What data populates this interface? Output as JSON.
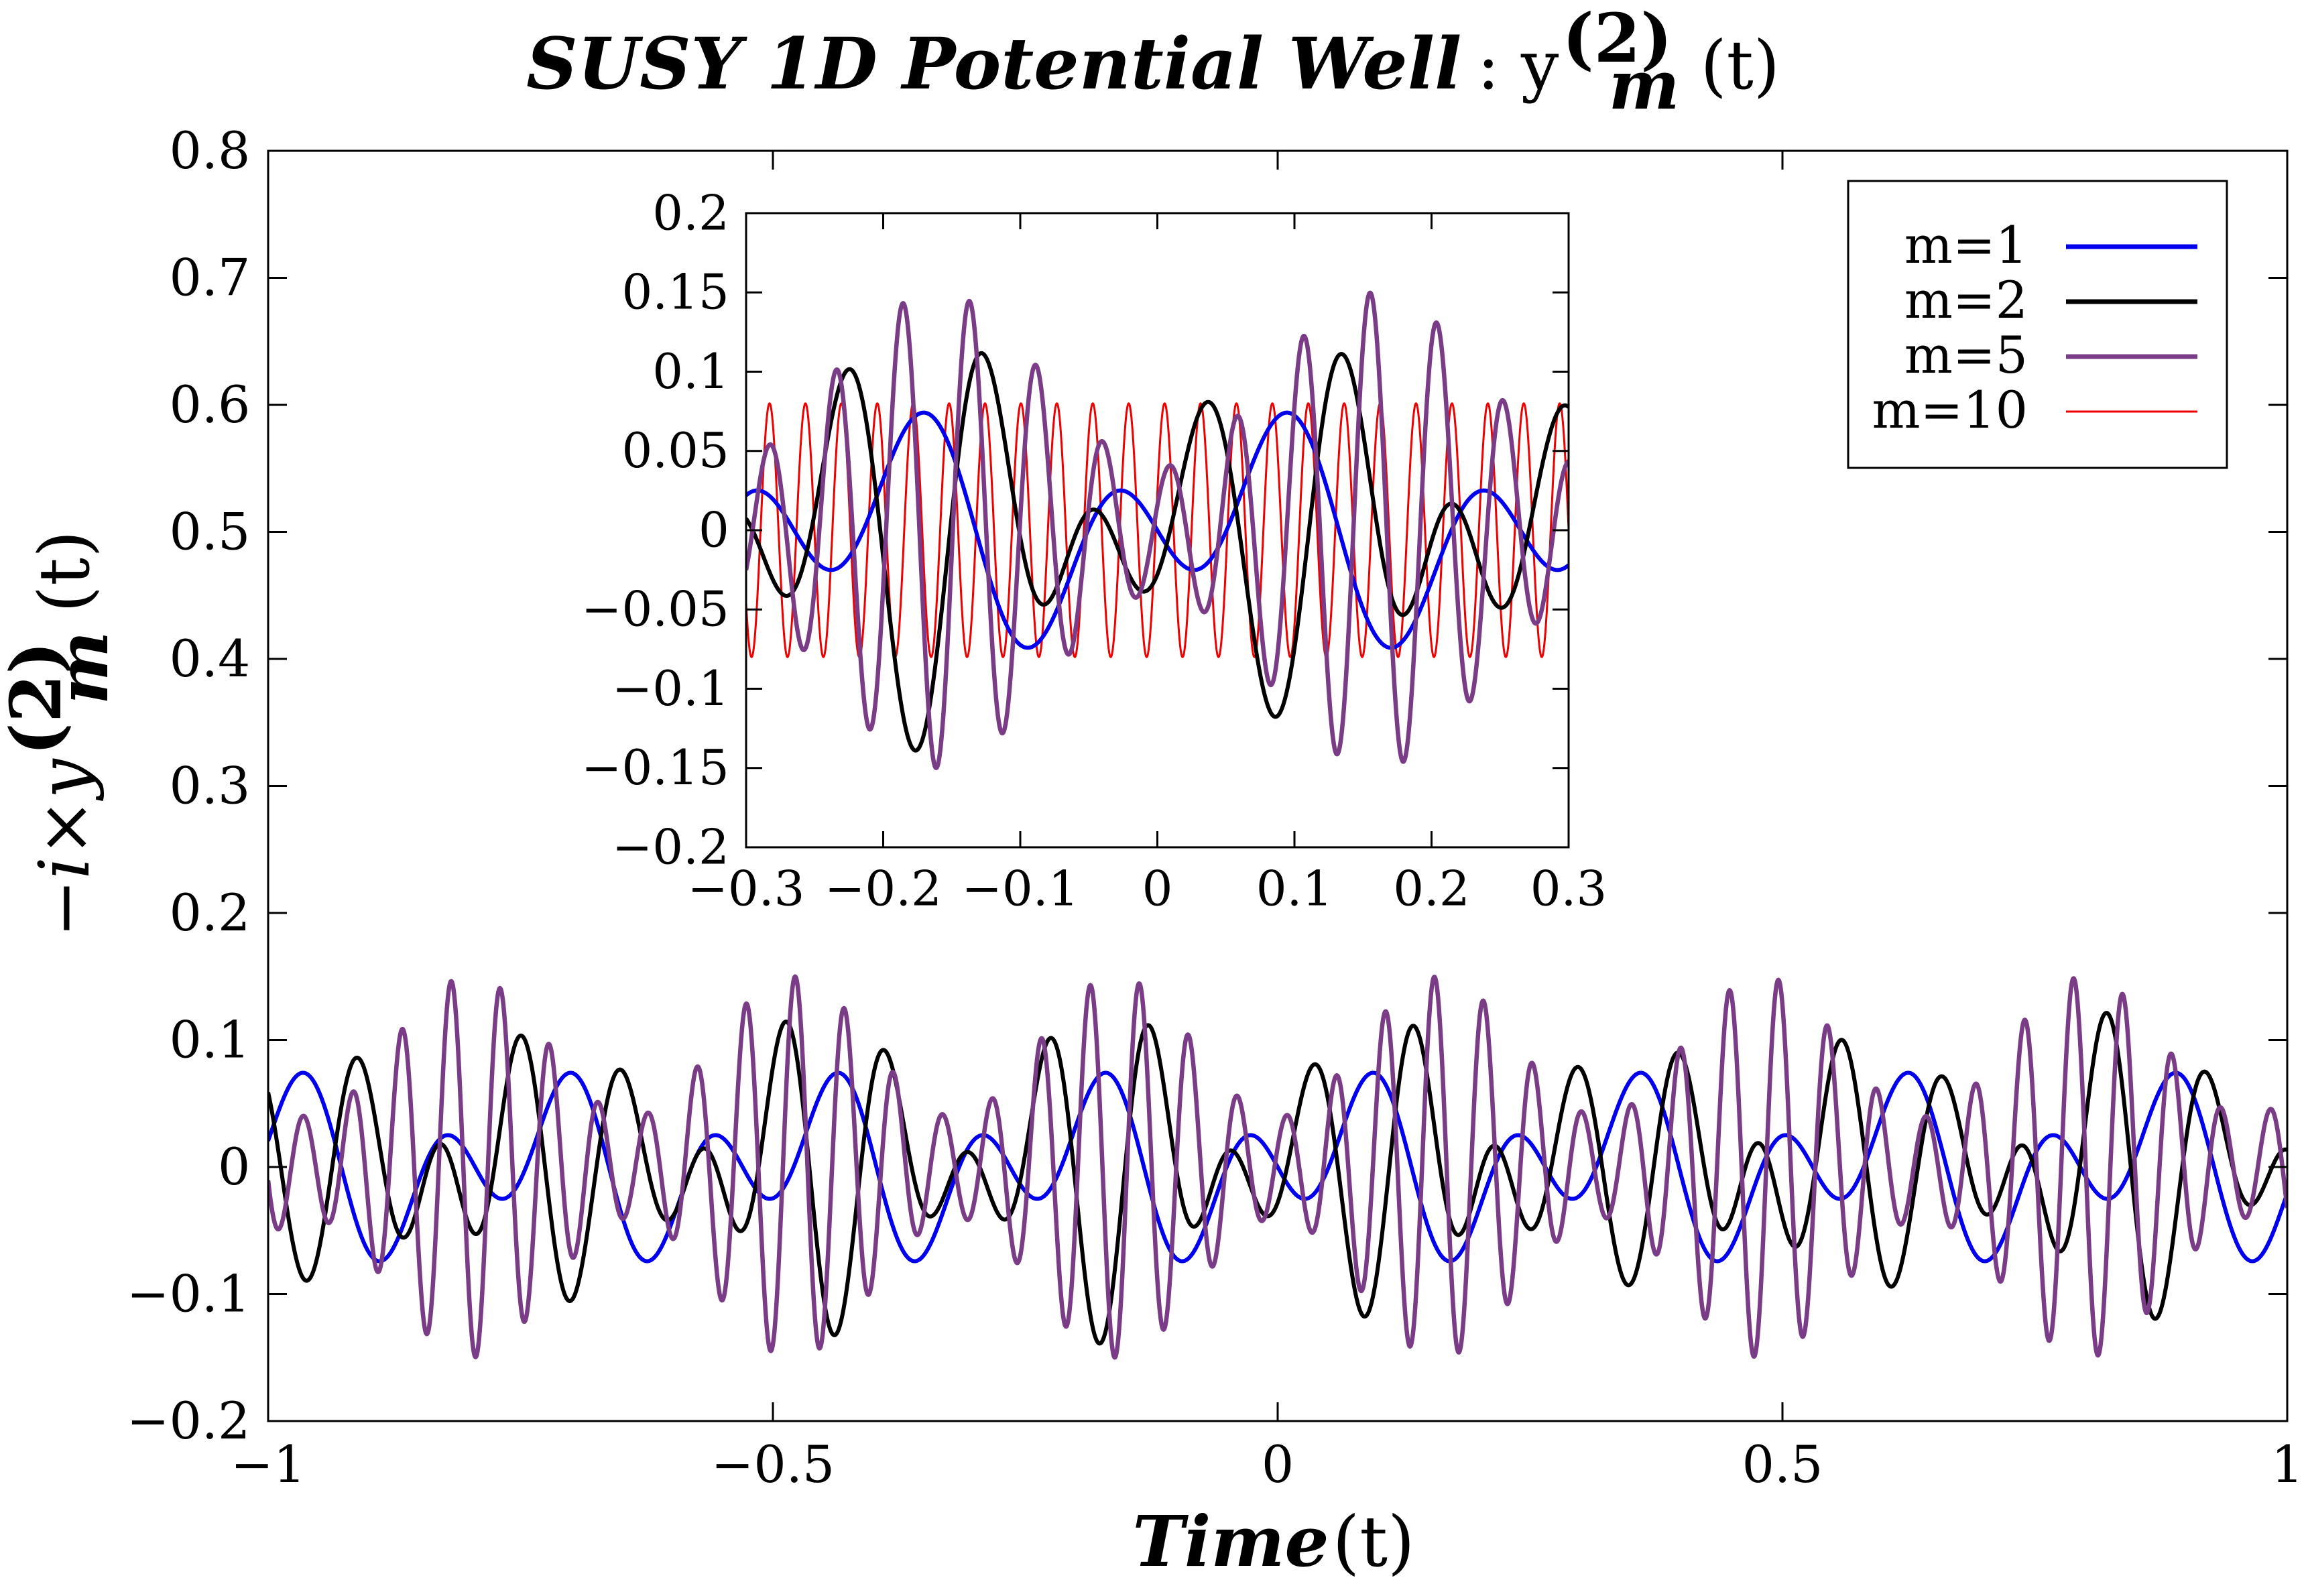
{
  "chart_data": [
    {
      "id": "main",
      "type": "line",
      "title_bold_italic": "SUSY 1D Potential Well",
      "title_suffix": ": y",
      "title_superscript": "(2)",
      "title_subscript": "m",
      "title_tail": "(t)",
      "xlabel_bold_italic": "Time",
      "xlabel_suffix": " (t)",
      "ylabel_prefix": "−i×y",
      "ylabel_superscript": "(2)",
      "ylabel_subscript": "m",
      "ylabel_tail": "(t)",
      "xlim": [
        -1,
        1
      ],
      "ylim": [
        -0.2,
        0.8
      ],
      "x_ticks": [
        -1,
        -0.5,
        0,
        0.5,
        1
      ],
      "x_tick_labels": [
        "−1",
        "−0.5",
        "0",
        "0.5",
        "1"
      ],
      "y_ticks": [
        -0.2,
        -0.1,
        0,
        0.1,
        0.2,
        0.3,
        0.4,
        0.5,
        0.6,
        0.7,
        0.8
      ],
      "y_tick_labels": [
        "−0.2",
        "−0.1",
        "0",
        "0.1",
        "0.2",
        "0.3",
        "0.4",
        "0.5",
        "0.6",
        "0.7",
        "0.8"
      ],
      "legend_position": "top-right",
      "series": [
        {
          "name": "m=1",
          "color": "#0000ee",
          "formula": "a*sin(k1*x + p)",
          "shown": true
        },
        {
          "name": "m=2",
          "color": "#000000",
          "shown": true
        },
        {
          "name": "m=5",
          "color": "#7b3c87",
          "shown": true
        },
        {
          "name": "m=10",
          "color": "#ee0000",
          "shown": false
        }
      ]
    },
    {
      "id": "inset",
      "type": "line",
      "xlim": [
        -0.3,
        0.3
      ],
      "ylim": [
        -0.2,
        0.2
      ],
      "x_ticks": [
        -0.3,
        -0.2,
        -0.1,
        0,
        0.1,
        0.2,
        0.3
      ],
      "x_tick_labels": [
        "−0.3",
        "−0.2",
        "−0.1",
        "0",
        "0.1",
        "0.2",
        "0.3"
      ],
      "y_ticks": [
        -0.2,
        -0.15,
        -0.1,
        -0.05,
        0,
        0.05,
        0.1,
        0.15,
        0.2
      ],
      "y_tick_labels": [
        "−0.2",
        "−0.15",
        "−0.1",
        "−0.05",
        "0",
        "0.05",
        "0.1",
        "0.15",
        "0.2"
      ],
      "series": [
        {
          "name": "m=1",
          "color": "#0000ee"
        },
        {
          "name": "m=2",
          "color": "#000000"
        },
        {
          "name": "m=5",
          "color": "#7b3c87"
        },
        {
          "name": "m=10",
          "color": "#ee0000"
        }
      ]
    }
  ],
  "legend": {
    "entries": [
      {
        "label": "m=1",
        "color": "#0000ee"
      },
      {
        "label": "m=2",
        "color": "#000000"
      },
      {
        "label": "m=5",
        "color": "#7b3c87"
      },
      {
        "label": "m=10",
        "color": "#ee0000"
      }
    ]
  }
}
